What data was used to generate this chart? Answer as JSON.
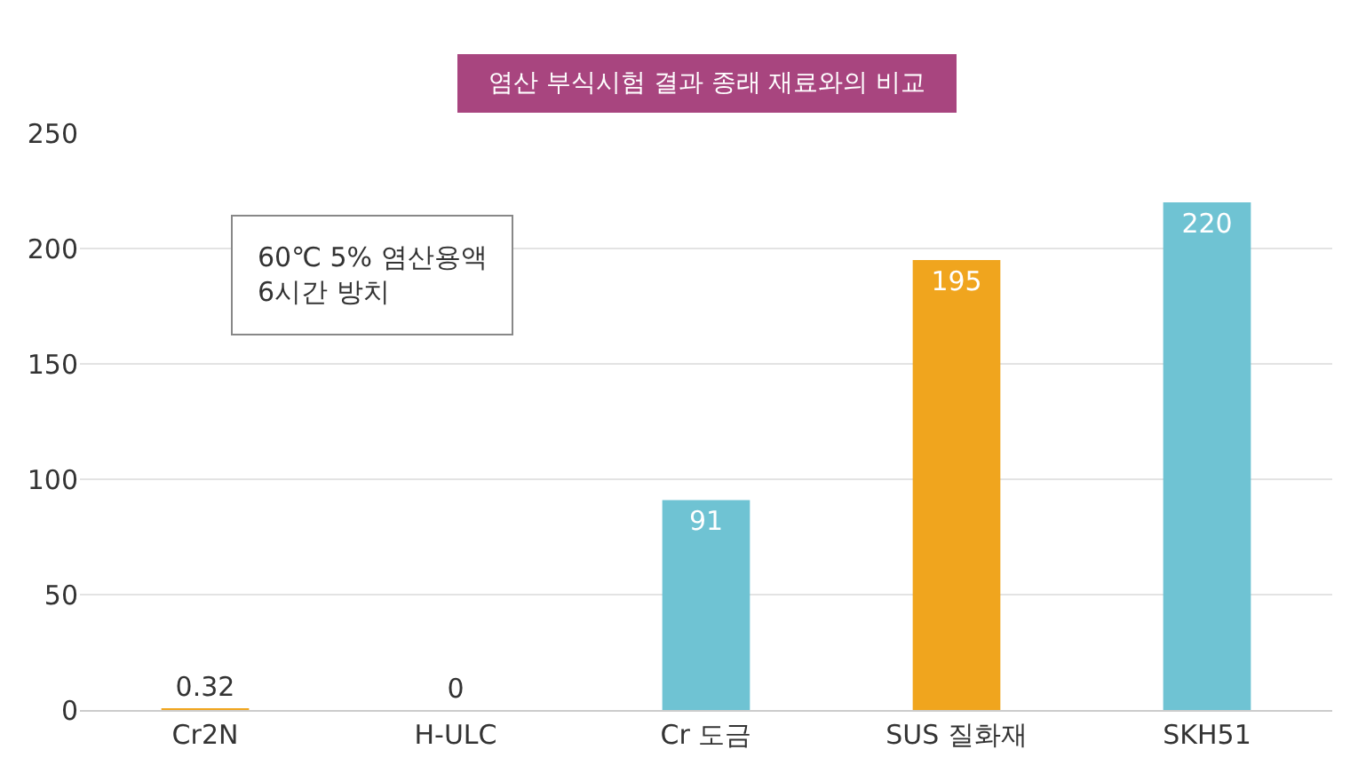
{
  "chart_data": {
    "type": "bar",
    "title": "염산 부식시험 결과 종래 재료와의 비교",
    "categories": [
      "Cr2N",
      "H-ULC",
      "Cr 도금",
      "SUS 질화재",
      "SKH51"
    ],
    "values": [
      0.32,
      0,
      91,
      195,
      220
    ],
    "colors": [
      "#f0a51e",
      "#f0a51e",
      "#6fc3d3",
      "#f0a51e",
      "#6fc3d3"
    ],
    "ylim": [
      0,
      250
    ],
    "yticks": [
      0,
      50,
      100,
      150,
      200,
      250
    ],
    "grid": "y",
    "legend": false,
    "data_labels": true,
    "annotations": [
      "60℃ 5% 염산용액\n6시간 방치"
    ]
  }
}
